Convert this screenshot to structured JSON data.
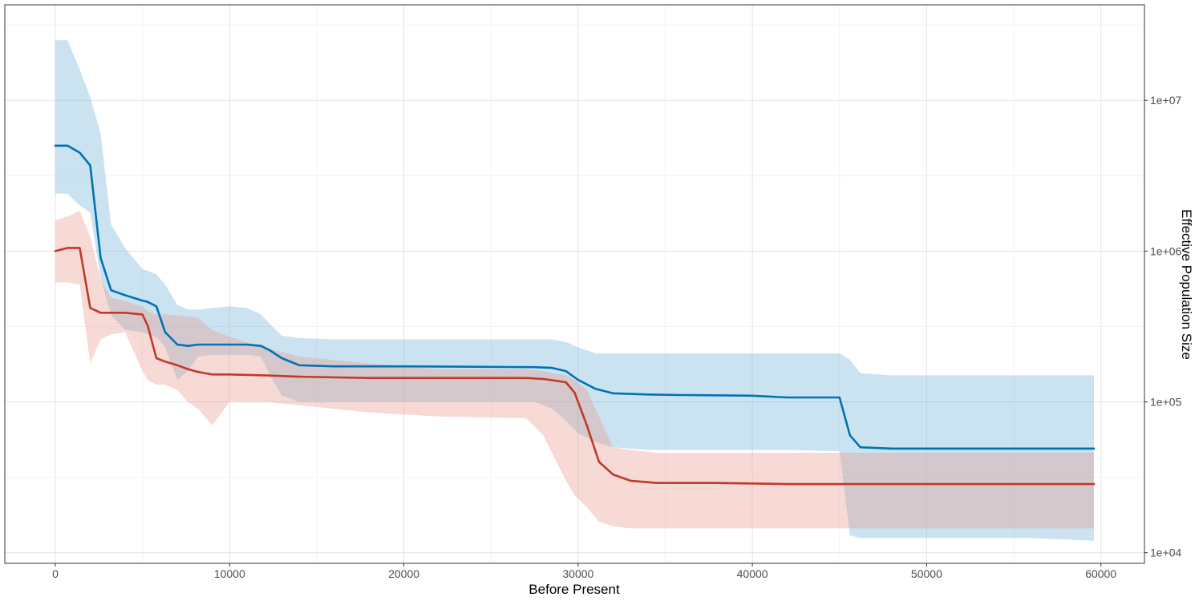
{
  "chart_data": {
    "type": "line",
    "title": "",
    "xlabel": "Before Present",
    "ylabel": "Effective Population Size",
    "xlim": [
      -2900,
      62500
    ],
    "ylim": [
      8500,
      43000000
    ],
    "yscale": "log10",
    "y_axis_position": "right",
    "grid": true,
    "legend": "none",
    "x_ticks": [
      {
        "value": 0,
        "label": "0"
      },
      {
        "value": 10000,
        "label": "10000"
      },
      {
        "value": 20000,
        "label": "20000"
      },
      {
        "value": 30000,
        "label": "30000"
      },
      {
        "value": 40000,
        "label": "40000"
      },
      {
        "value": 50000,
        "label": "50000"
      },
      {
        "value": 60000,
        "label": "60000"
      }
    ],
    "y_ticks": [
      {
        "value": 10000,
        "label": "1e+04"
      },
      {
        "value": 100000,
        "label": "1e+05"
      },
      {
        "value": 1000000,
        "label": "1e+06"
      },
      {
        "value": 10000000,
        "label": "1e+07"
      }
    ],
    "series": [
      {
        "color": "#0072B2",
        "band_color": "#6BAED6",
        "x": [
          0,
          700,
          1400,
          2000,
          2600,
          3200,
          4000,
          5000,
          5300,
          5800,
          6300,
          7000,
          7600,
          8200,
          9000,
          10000,
          11000,
          11800,
          12300,
          13000,
          14000,
          16000,
          20000,
          24000,
          27500,
          28500,
          29300,
          30000,
          31000,
          32000,
          34000,
          36000,
          40000,
          42000,
          45000,
          45600,
          46200,
          48000,
          52000,
          56000,
          59600
        ],
        "y": [
          5000000,
          5000000,
          4500000,
          3700000,
          900000,
          550000,
          510000,
          470000,
          460000,
          430000,
          290000,
          240000,
          235000,
          240000,
          240000,
          240000,
          240000,
          235000,
          220000,
          195000,
          175000,
          172000,
          172000,
          171000,
          170000,
          168000,
          160000,
          140000,
          122000,
          114000,
          112000,
          111000,
          110000,
          107000,
          107000,
          60000,
          50000,
          49000,
          49000,
          49000,
          49000
        ],
        "upper": [
          25000000,
          25000000,
          16000000,
          10500000,
          6000000,
          1500000,
          1050000,
          760000,
          740000,
          700000,
          600000,
          440000,
          410000,
          410000,
          420000,
          430000,
          420000,
          380000,
          330000,
          275000,
          265000,
          260000,
          260000,
          260000,
          260000,
          260000,
          250000,
          230000,
          210000,
          210000,
          210000,
          210000,
          210000,
          210000,
          210000,
          190000,
          155000,
          150000,
          150000,
          150000,
          150000
        ],
        "lower": [
          2400000,
          2400000,
          2000000,
          1800000,
          660000,
          375000,
          300000,
          290000,
          280000,
          270000,
          230000,
          140000,
          160000,
          200000,
          205000,
          205000,
          205000,
          200000,
          150000,
          110000,
          100000,
          100000,
          100000,
          100000,
          100000,
          90000,
          75000,
          62000,
          54000,
          50000,
          48000,
          48000,
          48000,
          48000,
          47000,
          13000,
          12500,
          12500,
          12500,
          12500,
          12000
        ]
      },
      {
        "color": "#C0392B",
        "band_color": "#E8958A",
        "x": [
          0,
          700,
          1400,
          2000,
          2600,
          3200,
          4000,
          5000,
          5300,
          5800,
          6300,
          7000,
          7600,
          8200,
          9000,
          10000,
          12000,
          14000,
          18000,
          22000,
          27000,
          28000,
          29300,
          29800,
          30500,
          31200,
          32000,
          33000,
          34500,
          38000,
          42000,
          46000,
          52000,
          59600
        ],
        "y": [
          1000000,
          1050000,
          1050000,
          420000,
          390000,
          390000,
          390000,
          380000,
          320000,
          195000,
          185000,
          175000,
          165000,
          158000,
          152000,
          152000,
          150000,
          147000,
          144000,
          144000,
          144000,
          142000,
          135000,
          115000,
          70000,
          40000,
          33000,
          30000,
          29000,
          29000,
          28500,
          28500,
          28500,
          28500
        ],
        "upper": [
          1600000,
          1700000,
          1850000,
          1250000,
          650000,
          490000,
          470000,
          430000,
          400000,
          380000,
          380000,
          375000,
          370000,
          360000,
          300000,
          270000,
          230000,
          200000,
          180000,
          165000,
          165000,
          160000,
          150000,
          140000,
          120000,
          80000,
          50000,
          48000,
          46000,
          46000,
          46000,
          46000,
          46000,
          46000
        ],
        "lower": [
          620000,
          620000,
          600000,
          180000,
          260000,
          280000,
          290000,
          160000,
          140000,
          130000,
          130000,
          120000,
          100000,
          90000,
          70000,
          100000,
          100000,
          95000,
          85000,
          80000,
          78000,
          60000,
          30000,
          24000,
          20000,
          16000,
          15000,
          14500,
          14500,
          14500,
          14500,
          14500,
          14500,
          14500
        ]
      }
    ]
  }
}
